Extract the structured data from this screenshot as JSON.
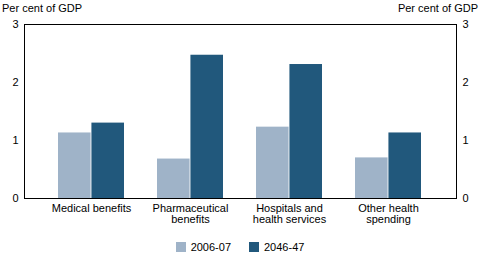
{
  "chart_data": {
    "type": "bar",
    "ylabel": "Per cent of GDP",
    "y2label": "Per cent of GDP",
    "categories": [
      "Medical benefits",
      "Pharmaceutical benefits",
      "Hospitals and health services",
      "Other health spending"
    ],
    "series": [
      {
        "name": "2006-07",
        "color": "#9fb3c8",
        "values": [
          1.13,
          0.68,
          1.23,
          0.7
        ]
      },
      {
        "name": "2046-47",
        "color": "#21587c",
        "values": [
          1.3,
          2.47,
          2.31,
          1.13
        ]
      }
    ],
    "ylim": [
      0,
      3
    ],
    "yticks": [
      0,
      1,
      2,
      3
    ],
    "y2lim": [
      0,
      3
    ],
    "y2ticks": [
      0,
      1,
      2,
      3
    ],
    "legend": "bottom"
  }
}
